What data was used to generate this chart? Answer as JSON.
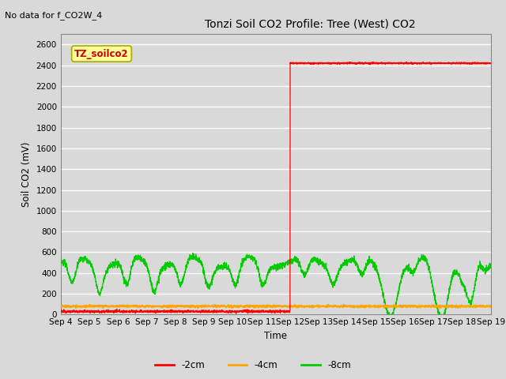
{
  "title": "Tonzi Soil CO2 Profile: Tree (West) CO2",
  "top_left_text": "No data for f_CO2W_4",
  "ylabel": "Soil CO2 (mV)",
  "xlabel": "Time",
  "ylim": [
    0,
    2700
  ],
  "yticks": [
    0,
    200,
    400,
    600,
    800,
    1000,
    1200,
    1400,
    1600,
    1800,
    2000,
    2200,
    2400,
    2600
  ],
  "background_color": "#d9d9d9",
  "plot_bg_color": "#d9d9d9",
  "grid_color": "#ffffff",
  "legend_labels": [
    "-2cm",
    "-4cm",
    "-8cm"
  ],
  "legend_colors": [
    "#ff0000",
    "#ffa500",
    "#00cc00"
  ],
  "inset_label": "TZ_soilco2",
  "inset_bg": "#ffff99",
  "inset_border": "#aaaa00",
  "inset_text_color": "#cc0000",
  "x_labels": [
    "Sep 4",
    "Sep 5",
    "Sep 6",
    "Sep 7",
    "Sep 8",
    "Sep 9",
    "Sep 10",
    "Sep 11",
    "Sep 12",
    "Sep 13",
    "Sep 14",
    "Sep 15",
    "Sep 16",
    "Sep 17",
    "Sep 18",
    "Sep 19"
  ],
  "red_jump_day": 8.0,
  "red_before_value": 30,
  "red_after_value": 2420
}
